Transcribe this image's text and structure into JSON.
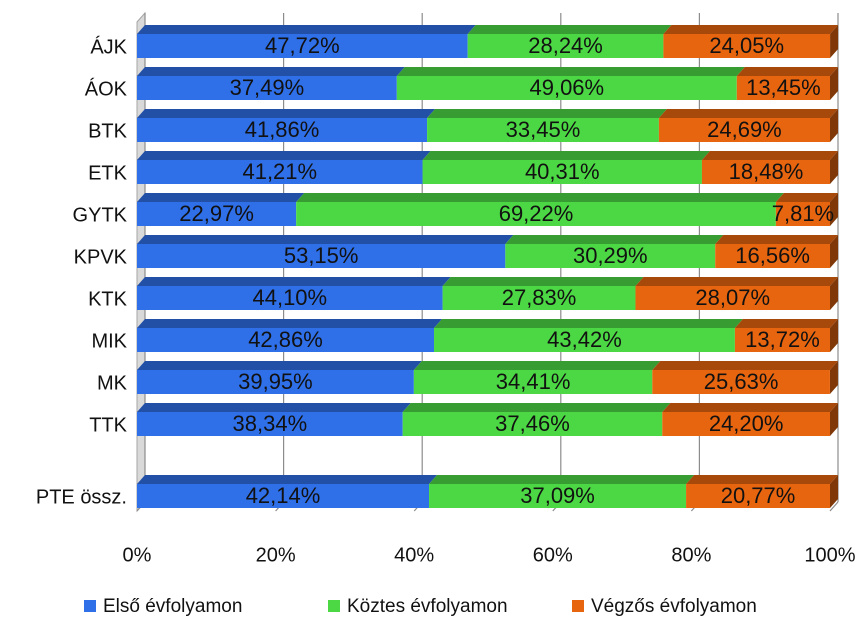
{
  "chart_data": {
    "type": "bar",
    "orientation": "horizontal",
    "stacked": "percent",
    "three_d": true,
    "categories": [
      "ÁJK",
      "ÁOK",
      "BTK",
      "ETK",
      "GYTK",
      "KPVK",
      "KTK",
      "MIK",
      "MK",
      "TTK",
      "PTE össz."
    ],
    "series": [
      {
        "name": "Első évfolyamon",
        "color": "#2f6fe8",
        "values": [
          47.72,
          37.49,
          41.86,
          41.21,
          22.97,
          53.15,
          44.1,
          42.86,
          39.95,
          38.34,
          42.14
        ],
        "labels": [
          "47,72%",
          "37,49%",
          "41,86%",
          "41,21%",
          "22,97%",
          "53,15%",
          "44,10%",
          "42,86%",
          "39,95%",
          "38,34%",
          "42,14%"
        ]
      },
      {
        "name": "Köztes évfolyamon",
        "color": "#4cd844",
        "values": [
          28.24,
          49.06,
          33.45,
          40.31,
          69.22,
          30.29,
          27.83,
          43.42,
          34.41,
          37.46,
          37.09
        ],
        "labels": [
          "28,24%",
          "49,06%",
          "33,45%",
          "40,31%",
          "69,22%",
          "30,29%",
          "27,83%",
          "43,42%",
          "34,41%",
          "37,46%",
          "37,09%"
        ]
      },
      {
        "name": "Végzős évfolyamon",
        "color": "#e8650f",
        "values": [
          24.05,
          13.45,
          24.69,
          18.48,
          7.81,
          16.56,
          28.07,
          13.72,
          25.63,
          24.2,
          20.77
        ],
        "labels": [
          "24,05%",
          "13,45%",
          "24,69%",
          "18,48%",
          "7,81%",
          "16,56%",
          "28,07%",
          "13,72%",
          "25,63%",
          "24,20%",
          "20,77%"
        ]
      }
    ],
    "xaxis": {
      "ticks": [
        0,
        20,
        40,
        60,
        80,
        100
      ],
      "tick_labels": [
        "0%",
        "20%",
        "40%",
        "60%",
        "80%",
        "100%"
      ],
      "range": [
        0,
        100
      ]
    },
    "title": "",
    "xlabel": "",
    "ylabel": "",
    "grid": true,
    "legend": {
      "position": "bottom"
    }
  }
}
